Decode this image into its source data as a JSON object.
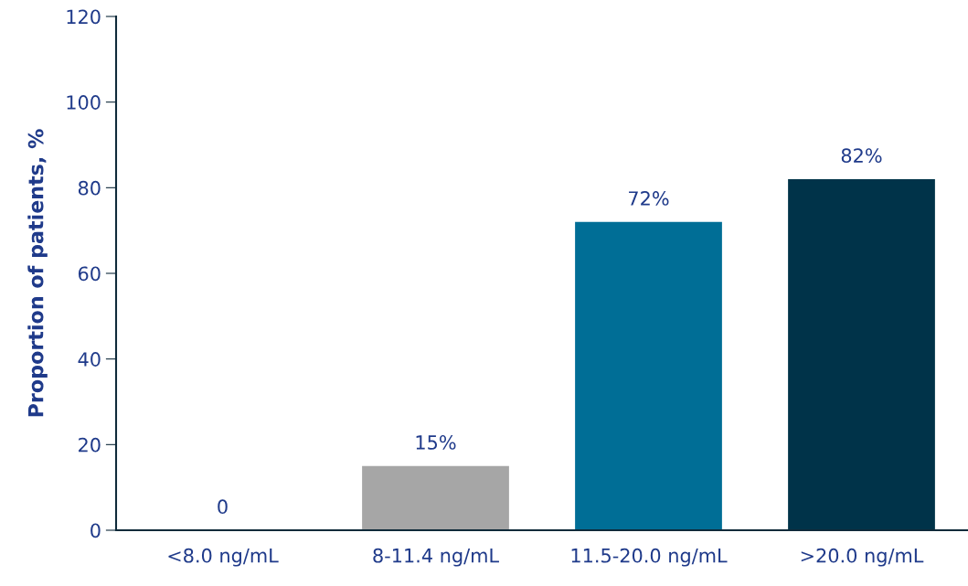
{
  "chart_data": {
    "type": "bar",
    "ylabel": "Proportion of patients, %",
    "categories": [
      "<8.0 ng/mL",
      "8-11.4 ng/mL",
      "11.5-20.0 ng/mL",
      ">20.0 ng/mL"
    ],
    "values": [
      0,
      15,
      72,
      82
    ],
    "colors": [
      "#a6a6a6",
      "#a6a6a6",
      "#006e96",
      "#003349"
    ],
    "value_labels": [
      "0",
      "15%",
      "72%",
      "82%"
    ],
    "ylim": [
      0,
      120
    ],
    "yticks": [
      0,
      20,
      40,
      60,
      80,
      100,
      120
    ],
    "grid": false,
    "legend": false
  }
}
